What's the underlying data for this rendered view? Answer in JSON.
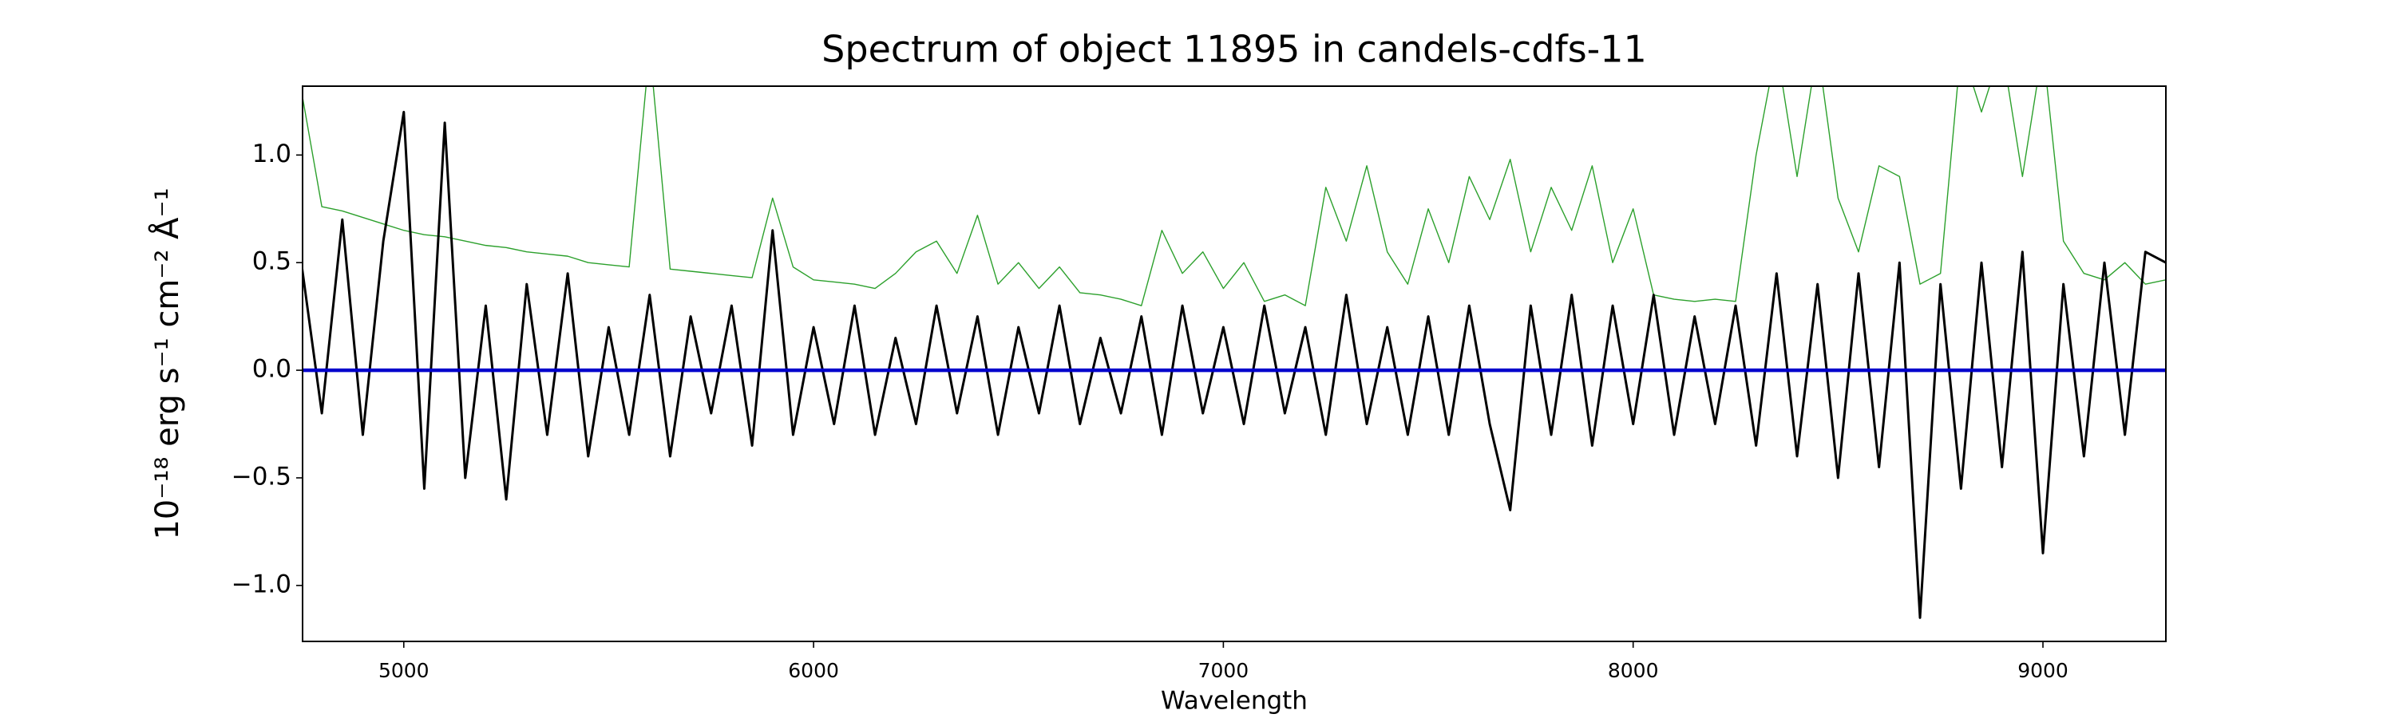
{
  "chart_data": {
    "type": "line",
    "title": "Spectrum of object 11895 in candels-cdfs-11",
    "xlabel": "Wavelength",
    "ylabel": "10⁻¹⁸ erg s⁻¹ cm⁻² Å⁻¹",
    "x": [
      4750,
      4800,
      4850,
      4900,
      4950,
      5000,
      5050,
      5100,
      5150,
      5200,
      5250,
      5300,
      5350,
      5400,
      5450,
      5500,
      5550,
      5600,
      5650,
      5700,
      5750,
      5800,
      5850,
      5900,
      5950,
      6000,
      6050,
      6100,
      6150,
      6200,
      6250,
      6300,
      6350,
      6400,
      6450,
      6500,
      6550,
      6600,
      6650,
      6700,
      6750,
      6800,
      6850,
      6900,
      6950,
      7000,
      7050,
      7100,
      7150,
      7200,
      7250,
      7300,
      7350,
      7400,
      7450,
      7500,
      7550,
      7600,
      7650,
      7700,
      7750,
      7800,
      7850,
      7900,
      7950,
      8000,
      8050,
      8100,
      8150,
      8200,
      8250,
      8300,
      8350,
      8400,
      8450,
      8500,
      8550,
      8600,
      8650,
      8700,
      8750,
      8800,
      8850,
      8900,
      8950,
      9000,
      9050,
      9100,
      9150,
      9200,
      9250,
      9300
    ],
    "series": [
      {
        "color": "#2ca02c",
        "width": 1.4,
        "values": [
          1.3,
          0.76,
          0.74,
          0.71,
          0.68,
          0.65,
          0.63,
          0.62,
          0.6,
          0.58,
          0.57,
          0.55,
          0.54,
          0.53,
          0.5,
          0.49,
          0.48,
          1.5,
          0.47,
          0.46,
          0.45,
          0.44,
          0.43,
          0.8,
          0.48,
          0.42,
          0.41,
          0.4,
          0.38,
          0.45,
          0.55,
          0.6,
          0.45,
          0.72,
          0.4,
          0.5,
          0.38,
          0.48,
          0.36,
          0.35,
          0.33,
          0.3,
          0.65,
          0.45,
          0.55,
          0.38,
          0.5,
          0.32,
          0.35,
          0.3,
          0.85,
          0.6,
          0.95,
          0.55,
          0.4,
          0.75,
          0.5,
          0.9,
          0.7,
          0.98,
          0.55,
          0.85,
          0.65,
          0.95,
          0.5,
          0.75,
          0.35,
          0.33,
          0.32,
          0.33,
          0.32,
          1.0,
          1.5,
          0.9,
          1.5,
          0.8,
          0.55,
          0.95,
          0.9,
          0.4,
          0.45,
          1.5,
          1.2,
          1.5,
          0.9,
          1.5,
          0.6,
          0.45,
          0.42,
          0.5,
          0.4,
          0.42
        ]
      },
      {
        "color": "#000000",
        "width": 3,
        "values": [
          0.5,
          -0.2,
          0.7,
          -0.3,
          0.6,
          1.2,
          -0.55,
          1.15,
          -0.5,
          0.3,
          -0.6,
          0.4,
          -0.3,
          0.45,
          -0.4,
          0.2,
          -0.3,
          0.35,
          -0.4,
          0.25,
          -0.2,
          0.3,
          -0.35,
          0.65,
          -0.3,
          0.2,
          -0.25,
          0.3,
          -0.3,
          0.15,
          -0.25,
          0.3,
          -0.2,
          0.25,
          -0.3,
          0.2,
          -0.2,
          0.3,
          -0.25,
          0.15,
          -0.2,
          0.25,
          -0.3,
          0.3,
          -0.2,
          0.2,
          -0.25,
          0.3,
          -0.2,
          0.2,
          -0.3,
          0.35,
          -0.25,
          0.2,
          -0.3,
          0.25,
          -0.3,
          0.3,
          -0.25,
          -0.65,
          0.3,
          -0.3,
          0.35,
          -0.35,
          0.3,
          -0.25,
          0.35,
          -0.3,
          0.25,
          -0.25,
          0.3,
          -0.35,
          0.45,
          -0.4,
          0.4,
          -0.5,
          0.45,
          -0.45,
          0.5,
          -1.15,
          0.4,
          -0.55,
          0.5,
          -0.45,
          0.55,
          -0.85,
          0.4,
          -0.4,
          0.5,
          -0.3,
          0.55,
          0.5
        ]
      },
      {
        "color": "#0000cc",
        "width": 4.5,
        "x": [
          4750,
          9300
        ],
        "values": [
          0,
          0
        ]
      }
    ],
    "xlim": [
      4753,
      9300
    ],
    "ylim": [
      -1.26,
      1.32
    ],
    "xticks": [
      5000,
      6000,
      7000,
      8000,
      9000
    ],
    "yticks": [
      {
        "value": -1.0,
        "label": "−1.0"
      },
      {
        "value": -0.5,
        "label": "−0.5"
      },
      {
        "value": 0.0,
        "label": "0.0"
      },
      0.5,
      {
        "value": 1.0,
        "label": "1.0"
      }
    ]
  }
}
